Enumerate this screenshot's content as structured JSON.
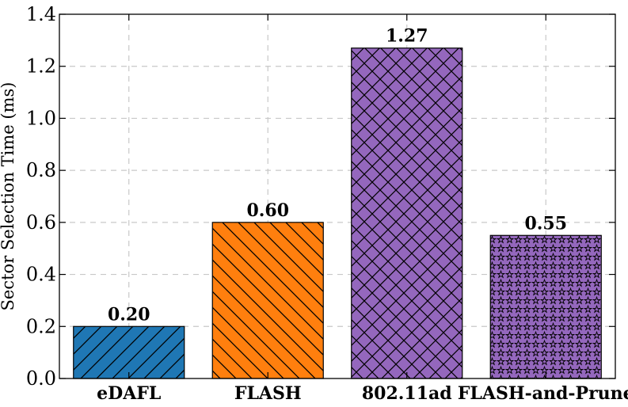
{
  "chart_data": {
    "type": "bar",
    "categories": [
      "eDAFL",
      "FLASH",
      "802.11ad",
      "FLASH-and-Prune"
    ],
    "values": [
      0.2,
      0.6,
      1.27,
      0.55
    ],
    "data_labels": [
      "0.20",
      "0.60",
      "1.27",
      "0.55"
    ],
    "colors": [
      "#1f77b4",
      "#ff7f0e",
      "#9467bd",
      "#9467bd"
    ],
    "hatches": [
      "diagonal-forward",
      "diagonal-back",
      "crosshatch",
      "stars"
    ],
    "title": "",
    "xlabel": "",
    "ylabel": "Sector Selection Time (ms)",
    "ylim": [
      0.0,
      1.4
    ],
    "yticks": [
      0.0,
      0.2,
      0.4,
      0.6,
      0.8,
      1.0,
      1.2,
      1.4
    ],
    "ytick_labels": [
      "0.0",
      "0.2",
      "0.4",
      "0.6",
      "0.8",
      "1.0",
      "1.2",
      "1.4"
    ],
    "grid": true,
    "legend": "none"
  }
}
